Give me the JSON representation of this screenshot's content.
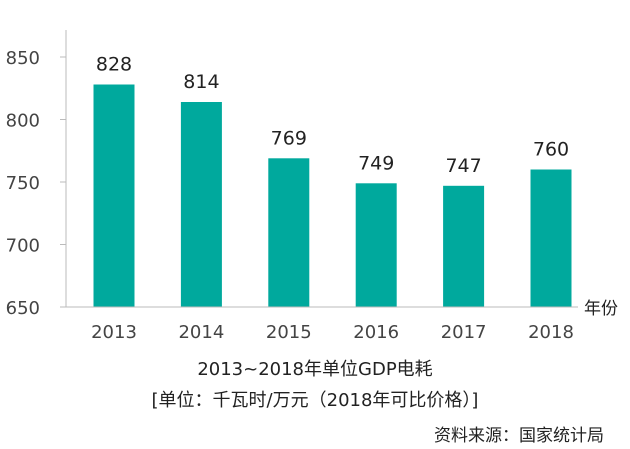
{
  "chart_data": {
    "type": "bar",
    "title": "2013~2018年单位GDP电耗",
    "subtitle": "[单位：千瓦时/万元（2018年可比价格）]",
    "source": "资料来源：国家统计局",
    "xlabel": "年份",
    "ylabel": "",
    "categories": [
      "2013",
      "2014",
      "2015",
      "2016",
      "2017",
      "2018"
    ],
    "values": [
      828,
      814,
      769,
      749,
      747,
      760
    ],
    "data_labels": [
      "828",
      "814",
      "769",
      "749",
      "747",
      "760"
    ],
    "ylim": [
      650,
      870
    ],
    "yticks": [
      650,
      700,
      750,
      800,
      850
    ],
    "ytick_labels": [
      "650",
      "700",
      "750",
      "800",
      "850"
    ],
    "grid": false,
    "bar_color": "#00a99d",
    "text_color": "#222222",
    "axis_color": "#bbbbbb"
  }
}
